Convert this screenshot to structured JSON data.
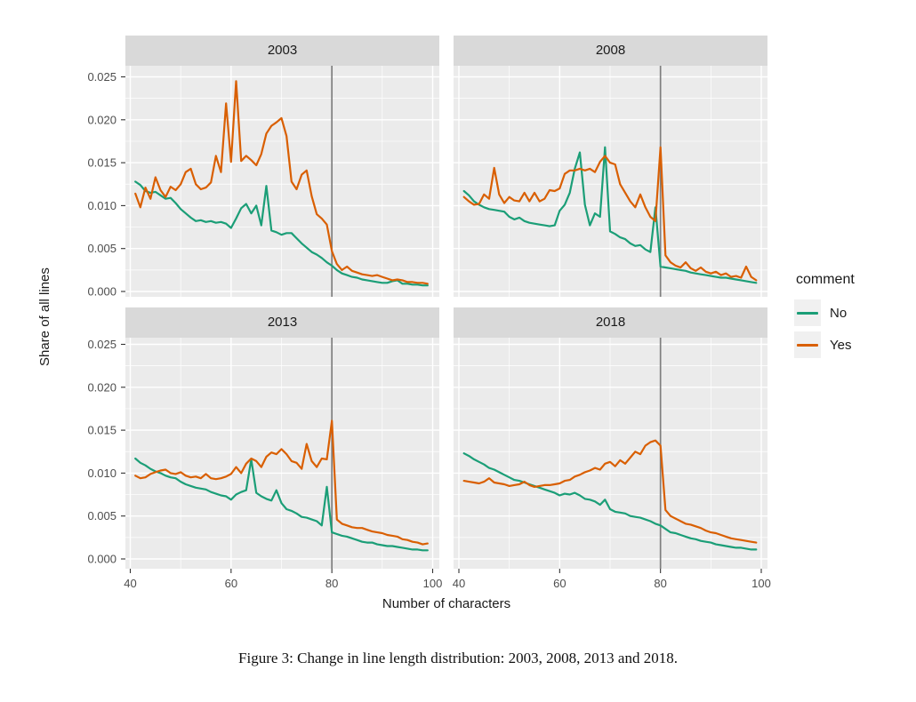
{
  "figure": {
    "caption": "Figure 3: Change in line length distribution: 2003, 2008, 2013 and 2018."
  },
  "chart_data": {
    "type": "line",
    "title": "",
    "xlabel": "Number of characters",
    "ylabel": "Share of all lines",
    "x_tick_labels": [
      "40",
      "60",
      "80",
      "100"
    ],
    "x_tick_values": [
      40,
      60,
      80,
      100
    ],
    "x_minor_values": [
      50,
      70,
      90
    ],
    "y_tick_labels": [
      "0.000",
      "0.005",
      "0.010",
      "0.015",
      "0.020",
      "0.025"
    ],
    "y_tick_values": [
      0,
      0.005,
      0.01,
      0.015,
      0.02,
      0.025
    ],
    "y_minor_values": [
      0.0025,
      0.0075,
      0.0125,
      0.0175,
      0.0225
    ],
    "xlim": [
      39,
      101
    ],
    "ylim": [
      -0.0012,
      0.0263
    ],
    "grid": true,
    "reference_line_x": 80,
    "legend": {
      "title": "comment",
      "position": "right",
      "entries": [
        {
          "label": "No",
          "color": "#1B9E77"
        },
        {
          "label": "Yes",
          "color": "#D95F02"
        }
      ]
    },
    "colors": {
      "panel_bg": "#EBEBEB",
      "strip_bg": "#D9D9D9",
      "grid": "#FFFFFF",
      "reference_line": "#7F7F7F",
      "tick_label": "#4D4D4D",
      "tick_mark": "#333333"
    },
    "x": [
      41,
      42,
      43,
      44,
      45,
      46,
      47,
      48,
      49,
      50,
      51,
      52,
      53,
      54,
      55,
      56,
      57,
      58,
      59,
      60,
      61,
      62,
      63,
      64,
      65,
      66,
      67,
      68,
      69,
      70,
      71,
      72,
      73,
      74,
      75,
      76,
      77,
      78,
      79,
      80,
      81,
      82,
      83,
      84,
      85,
      86,
      87,
      88,
      89,
      90,
      91,
      92,
      93,
      94,
      95,
      96,
      97,
      98,
      99
    ],
    "facets": [
      {
        "label": "2003",
        "series": [
          {
            "name": "No",
            "color": "#1B9E77",
            "values": [
              0.0128,
              0.0124,
              0.0117,
              0.0115,
              0.0116,
              0.0112,
              0.0108,
              0.0109,
              0.0103,
              0.0096,
              0.0091,
              0.0086,
              0.0082,
              0.0083,
              0.0081,
              0.0082,
              0.008,
              0.0081,
              0.0079,
              0.0074,
              0.0085,
              0.0097,
              0.0102,
              0.0091,
              0.01,
              0.0077,
              0.0123,
              0.0071,
              0.0069,
              0.0066,
              0.0068,
              0.0068,
              0.0062,
              0.0056,
              0.0051,
              0.0046,
              0.0043,
              0.0039,
              0.0034,
              0.003,
              0.0025,
              0.0021,
              0.0019,
              0.0017,
              0.0016,
              0.0014,
              0.0013,
              0.0012,
              0.0011,
              0.001,
              0.001,
              0.0012,
              0.0013,
              0.0009,
              0.0009,
              0.0008,
              0.0008,
              0.0007,
              0.0007
            ]
          },
          {
            "name": "Yes",
            "color": "#D95F02",
            "values": [
              0.0114,
              0.0098,
              0.0121,
              0.0108,
              0.0133,
              0.0118,
              0.011,
              0.0122,
              0.0118,
              0.0125,
              0.0139,
              0.0143,
              0.0125,
              0.0119,
              0.0121,
              0.0127,
              0.0158,
              0.0139,
              0.0219,
              0.0151,
              0.0245,
              0.0152,
              0.0158,
              0.0153,
              0.0147,
              0.016,
              0.0184,
              0.0193,
              0.0197,
              0.0202,
              0.0181,
              0.0128,
              0.0119,
              0.0136,
              0.0141,
              0.0111,
              0.009,
              0.0085,
              0.0078,
              0.0047,
              0.0032,
              0.0025,
              0.0029,
              0.0024,
              0.0022,
              0.002,
              0.0019,
              0.0018,
              0.0019,
              0.0017,
              0.0015,
              0.0013,
              0.0014,
              0.0013,
              0.0011,
              0.0011,
              0.001,
              0.001,
              0.0009
            ]
          }
        ]
      },
      {
        "label": "2008",
        "series": [
          {
            "name": "No",
            "color": "#1B9E77",
            "values": [
              0.0117,
              0.0112,
              0.0105,
              0.0101,
              0.0098,
              0.0096,
              0.0095,
              0.0094,
              0.0093,
              0.0087,
              0.0084,
              0.0086,
              0.0082,
              0.008,
              0.0079,
              0.0078,
              0.0077,
              0.0076,
              0.0077,
              0.0094,
              0.0101,
              0.0115,
              0.0143,
              0.0162,
              0.0101,
              0.0077,
              0.0091,
              0.0087,
              0.0168,
              0.007,
              0.0067,
              0.0063,
              0.0061,
              0.0056,
              0.0053,
              0.0054,
              0.0049,
              0.0046,
              0.0098,
              0.0029,
              0.0028,
              0.0027,
              0.0026,
              0.0025,
              0.0024,
              0.0022,
              0.0021,
              0.002,
              0.0019,
              0.0018,
              0.0017,
              0.0016,
              0.0016,
              0.0015,
              0.0014,
              0.0013,
              0.0012,
              0.0011,
              0.001
            ]
          },
          {
            "name": "Yes",
            "color": "#D95F02",
            "values": [
              0.011,
              0.0105,
              0.0101,
              0.0102,
              0.0113,
              0.0108,
              0.0144,
              0.0113,
              0.0103,
              0.011,
              0.0106,
              0.0105,
              0.0115,
              0.0105,
              0.0115,
              0.0105,
              0.0108,
              0.0118,
              0.0117,
              0.012,
              0.0137,
              0.0141,
              0.0141,
              0.0143,
              0.0141,
              0.0143,
              0.0139,
              0.0151,
              0.0158,
              0.015,
              0.0148,
              0.0125,
              0.0115,
              0.0105,
              0.0098,
              0.0113,
              0.0098,
              0.0087,
              0.0082,
              0.0168,
              0.0042,
              0.0034,
              0.003,
              0.0028,
              0.0034,
              0.0027,
              0.0024,
              0.0028,
              0.0023,
              0.0021,
              0.0023,
              0.0019,
              0.0021,
              0.0017,
              0.0018,
              0.0016,
              0.0029,
              0.0017,
              0.0013
            ]
          }
        ]
      },
      {
        "label": "2013",
        "series": [
          {
            "name": "No",
            "color": "#1B9E77",
            "values": [
              0.0117,
              0.0112,
              0.0109,
              0.0105,
              0.0102,
              0.01,
              0.0097,
              0.0095,
              0.0094,
              0.009,
              0.0087,
              0.0085,
              0.0083,
              0.0082,
              0.0081,
              0.0078,
              0.0076,
              0.0074,
              0.0073,
              0.0069,
              0.0075,
              0.0078,
              0.008,
              0.0116,
              0.0077,
              0.0073,
              0.007,
              0.0068,
              0.008,
              0.0065,
              0.0058,
              0.0056,
              0.0053,
              0.0049,
              0.0048,
              0.0046,
              0.0044,
              0.0039,
              0.0084,
              0.0031,
              0.0029,
              0.0027,
              0.0026,
              0.0024,
              0.0022,
              0.002,
              0.0019,
              0.0019,
              0.0017,
              0.0016,
              0.0015,
              0.0015,
              0.0014,
              0.0013,
              0.0012,
              0.0011,
              0.0011,
              0.001,
              0.001
            ]
          },
          {
            "name": "Yes",
            "color": "#D95F02",
            "values": [
              0.0097,
              0.0094,
              0.0095,
              0.0099,
              0.0101,
              0.0103,
              0.0104,
              0.01,
              0.0099,
              0.0101,
              0.0097,
              0.0095,
              0.0096,
              0.0094,
              0.0099,
              0.0094,
              0.0093,
              0.0094,
              0.0096,
              0.0099,
              0.0107,
              0.01,
              0.0111,
              0.0117,
              0.0114,
              0.0107,
              0.0119,
              0.0124,
              0.0122,
              0.0128,
              0.0122,
              0.0114,
              0.0112,
              0.0105,
              0.0134,
              0.0114,
              0.0107,
              0.0117,
              0.0116,
              0.0161,
              0.0046,
              0.0041,
              0.0039,
              0.0037,
              0.0036,
              0.0036,
              0.0034,
              0.0032,
              0.0031,
              0.003,
              0.0028,
              0.0027,
              0.0026,
              0.0023,
              0.0022,
              0.002,
              0.0019,
              0.0017,
              0.0018
            ]
          }
        ]
      },
      {
        "label": "2018",
        "series": [
          {
            "name": "No",
            "color": "#1B9E77",
            "values": [
              0.0123,
              0.012,
              0.0116,
              0.0113,
              0.011,
              0.0106,
              0.0104,
              0.0101,
              0.0098,
              0.0095,
              0.0092,
              0.0091,
              0.0089,
              0.0087,
              0.0085,
              0.0083,
              0.0081,
              0.0079,
              0.0077,
              0.0074,
              0.0076,
              0.0075,
              0.0077,
              0.0074,
              0.007,
              0.0069,
              0.0067,
              0.0063,
              0.0069,
              0.0058,
              0.0055,
              0.0054,
              0.0053,
              0.005,
              0.0049,
              0.0048,
              0.0046,
              0.0044,
              0.0041,
              0.0039,
              0.0035,
              0.0031,
              0.003,
              0.0028,
              0.0026,
              0.0024,
              0.0023,
              0.0021,
              0.002,
              0.0019,
              0.0017,
              0.0016,
              0.0015,
              0.0014,
              0.0013,
              0.0013,
              0.0012,
              0.0011,
              0.0011
            ]
          },
          {
            "name": "Yes",
            "color": "#D95F02",
            "values": [
              0.0091,
              0.009,
              0.0089,
              0.0088,
              0.009,
              0.0094,
              0.0089,
              0.0088,
              0.0087,
              0.0085,
              0.0086,
              0.0087,
              0.009,
              0.0086,
              0.0084,
              0.0085,
              0.0086,
              0.0086,
              0.0087,
              0.0088,
              0.0091,
              0.0092,
              0.0096,
              0.0098,
              0.0101,
              0.0103,
              0.0106,
              0.0104,
              0.0111,
              0.0113,
              0.0108,
              0.0115,
              0.0111,
              0.0118,
              0.0125,
              0.0122,
              0.0132,
              0.0136,
              0.0138,
              0.0132,
              0.0057,
              0.005,
              0.0047,
              0.0044,
              0.0041,
              0.004,
              0.0038,
              0.0036,
              0.0033,
              0.0031,
              0.003,
              0.0028,
              0.0026,
              0.0024,
              0.0023,
              0.0022,
              0.0021,
              0.002,
              0.0019
            ]
          }
        ]
      }
    ]
  }
}
